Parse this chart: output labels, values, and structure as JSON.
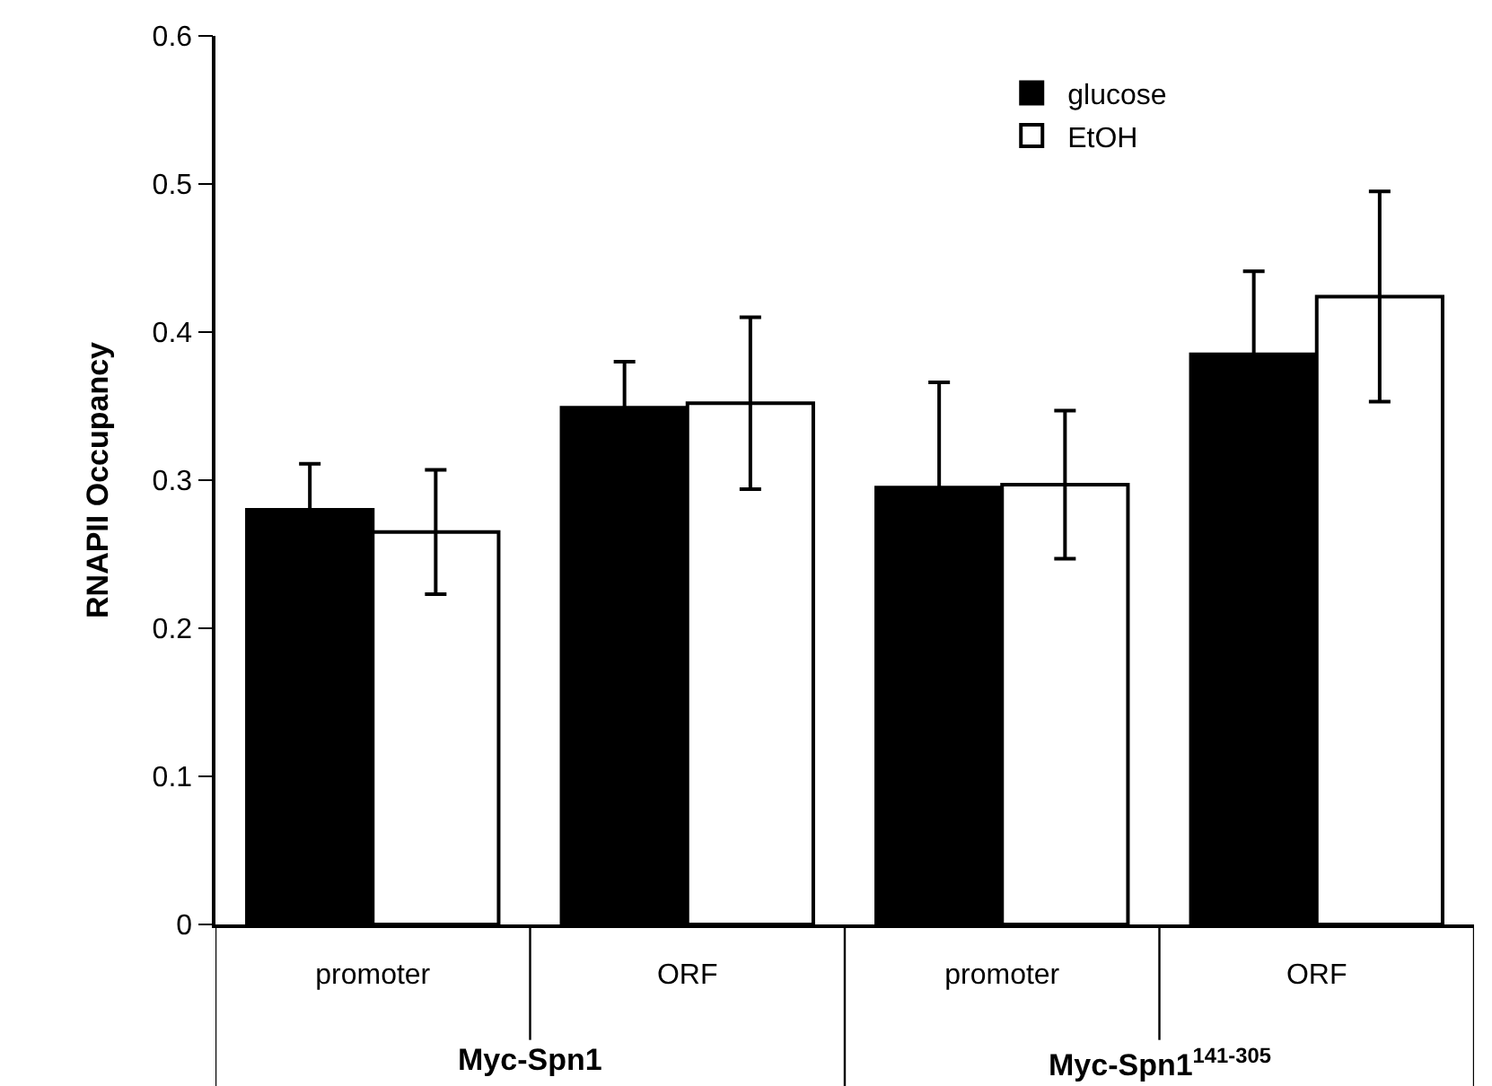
{
  "chart_data": {
    "type": "bar",
    "ylabel": "RNAPII Occupancy",
    "categories": [
      "promoter",
      "ORF",
      "promoter",
      "ORF"
    ],
    "series": [
      {
        "name": "glucose",
        "color": "#000000",
        "values": [
          0.28,
          0.349,
          0.295,
          0.385
        ],
        "errors": [
          0.031,
          0.031,
          0.071,
          0.056
        ]
      },
      {
        "name": "EtOH",
        "color": "#ffffff",
        "values": [
          0.265,
          0.352,
          0.297,
          0.424
        ],
        "errors": [
          0.042,
          0.058,
          0.05,
          0.071
        ]
      }
    ],
    "annotations": [
      "Myc-Spn1",
      "Myc-Spn1$^{141-305}$"
    ],
    "ylim": [
      0,
      0.6
    ],
    "yticks": [
      0,
      0.1,
      0.2,
      0.3,
      0.4,
      0.5,
      0.6
    ],
    "grid": false,
    "legend": "top right"
  }
}
